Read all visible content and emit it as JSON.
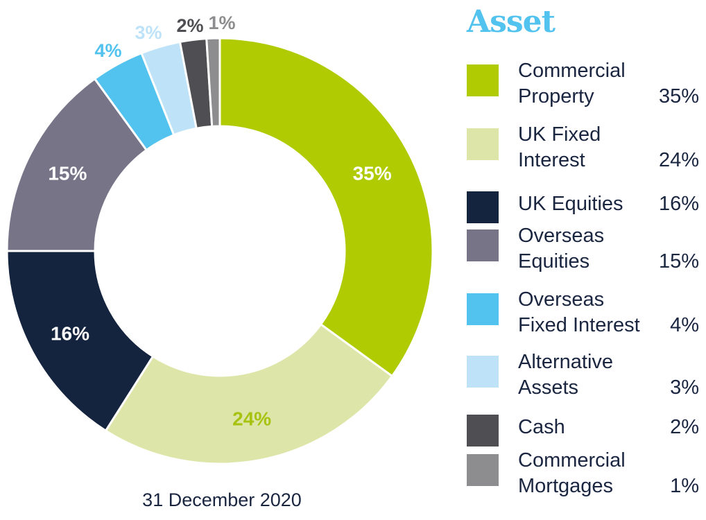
{
  "chart_data": {
    "type": "pie",
    "title": "",
    "legend_title": "Asset",
    "caption": "31 December 2020",
    "legend_position": "right",
    "series": [
      {
        "name": "Commercial Property",
        "label_lines": [
          "Commercial",
          "Property"
        ],
        "value": 35,
        "label": "35%",
        "color": "#b1cb03",
        "label_color": "#ffffff"
      },
      {
        "name": "UK Fixed Interest",
        "label_lines": [
          "UK Fixed",
          "Interest"
        ],
        "value": 24,
        "label": "24%",
        "color": "#dde6a8",
        "label_color": "#a8c212"
      },
      {
        "name": "UK Equities",
        "label_lines": [
          "UK Equities"
        ],
        "value": 16,
        "label": "16%",
        "color": "#14233e",
        "label_color": "#ffffff"
      },
      {
        "name": "Overseas Equities",
        "label_lines": [
          "Overseas",
          "Equities"
        ],
        "value": 15,
        "label": "15%",
        "color": "#777488",
        "label_color": "#ffffff"
      },
      {
        "name": "Overseas Fixed Interest",
        "label_lines": [
          "Overseas",
          "Fixed Interest"
        ],
        "value": 4,
        "label": "4%",
        "color": "#52c2ee",
        "label_color": "#52c2ee"
      },
      {
        "name": "Alternative Assets",
        "label_lines": [
          "Alternative",
          "Assets"
        ],
        "value": 3,
        "label": "3%",
        "color": "#bee3f9",
        "label_color": "#bee3f9"
      },
      {
        "name": "Cash",
        "label_lines": [
          "Cash"
        ],
        "value": 2,
        "label": "2%",
        "color": "#4f4f53",
        "label_color": "#4f4f53"
      },
      {
        "name": "Commercial Mortgages",
        "label_lines": [
          "Commercial",
          "Mortgages"
        ],
        "value": 1,
        "label": "1%",
        "color": "#8d8d8f",
        "label_color": "#8d8d8f"
      }
    ]
  }
}
